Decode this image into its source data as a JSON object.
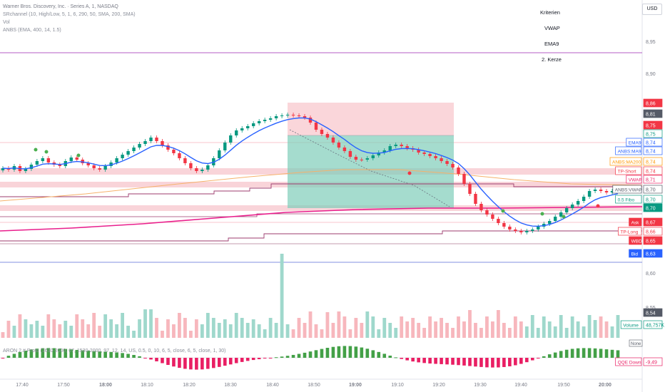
{
  "legend": {
    "title": "Warner Bros. Discovery, Inc. · Series A, 1, NASDAQ",
    "line2": "SRchannel (10, High/Low, 5, 1, 6, 290, 50, SMA, 200, SMA)",
    "line3": "Vol",
    "line4": "ANBS (EMA, 400, 14, 1.5)"
  },
  "criteria": {
    "items": [
      "Kriterien",
      "VWAP",
      "EMA9",
      "2. Kerze"
    ]
  },
  "currency_button": "USD",
  "oscillator_label": "ARON 2.# Proto (1630-2000, 07, 1530-2000, 97, 12, 14, US, 0.5, 0, 10, 6, 5, close, 6, 5, close, 1, 30)",
  "chart_data": {
    "type": "candlestick",
    "symbol": "Warner Bros. Discovery, Inc. · Series A",
    "interval": "1",
    "exchange": "NASDAQ",
    "price_ticks": [
      "8,95",
      "8,90",
      "8,60",
      "8,55"
    ],
    "time_ticks": [
      "17:40",
      "17:50",
      "18:00",
      "18:10",
      "18:20",
      "18:30",
      "18:40",
      "18:50",
      "19:00",
      "19:10",
      "19:20",
      "19:30",
      "19:40",
      "19:50",
      "20:00"
    ],
    "price_axis_labels": [
      {
        "text": "8,86",
        "color": "#f23645"
      },
      {
        "text": "8,81",
        "color": "#555a66"
      },
      {
        "text": "8,75",
        "color": "#f23645"
      },
      {
        "text": "8,75",
        "color": "#089981",
        "outlined": true
      },
      {
        "text": "8,74",
        "color": "#2962ff",
        "outlined": true,
        "tag": "EMA9"
      },
      {
        "text": "8,74",
        "color": "#2962ff",
        "outlined": true,
        "tag": "ANBS:MA9"
      },
      {
        "text": "8,74",
        "color": "#ff9800",
        "outlined": true,
        "tag": "ANBS:MA200"
      },
      {
        "text": "8,74",
        "color": "#f23645",
        "outlined": true,
        "tag": "TP-Short"
      },
      {
        "text": "8,71",
        "color": "#e91e63",
        "outlined": true,
        "tag": "VWAP"
      },
      {
        "text": "8,70",
        "color": "#555a66",
        "outlined": true,
        "tag": "ANBS:VWAP"
      },
      {
        "text": "8,70",
        "color": "#089981",
        "outlined": true,
        "tag": "0.5 Fibo"
      },
      {
        "text": "8,70",
        "color": "#089981"
      },
      {
        "text": "8,67",
        "color": "#f23645",
        "tag": "Ask"
      },
      {
        "text": "8,66",
        "color": "#f23645",
        "outlined": true,
        "tag": "TP-Long"
      },
      {
        "text": "8,65",
        "color": "#f23645",
        "tag": "WBD"
      },
      {
        "text": "8,63",
        "color": "#2962ff",
        "tag": "Bid"
      },
      {
        "text": "8,54",
        "color": "#555a66"
      },
      {
        "text": "48,757K",
        "color": "#089981",
        "outlined": true,
        "tag": "Volume"
      },
      {
        "text": "-9,49",
        "color": "#e91e63",
        "outlined": true,
        "tag": "QQE Down"
      }
    ],
    "other_tags": [
      "None"
    ]
  }
}
